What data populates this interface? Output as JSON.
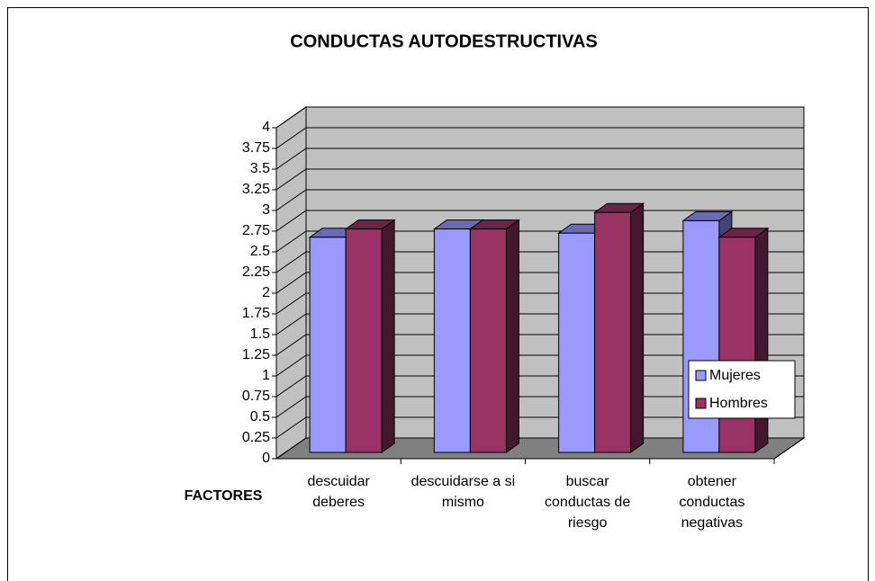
{
  "chart_data": {
    "type": "bar3d",
    "title": "CONDUCTAS AUTODESTRUCTIVAS",
    "x_label": "FACTORES",
    "categories": [
      "descuidar deberes",
      "descuidarse a si mismo",
      "buscar conductas de riesgo",
      "obtener conductas negativas"
    ],
    "series": [
      {
        "name": "Mujeres",
        "color": "#9999ff",
        "values": [
          2.6,
          2.7,
          2.65,
          2.8
        ]
      },
      {
        "name": "Hombres",
        "color": "#993366",
        "values": [
          2.7,
          2.7,
          2.9,
          2.6
        ]
      }
    ],
    "ylim": [
      0,
      4
    ],
    "yticks": [
      0,
      0.25,
      0.5,
      0.75,
      1,
      1.25,
      1.5,
      1.75,
      2,
      2.25,
      2.5,
      2.75,
      3,
      3.25,
      3.5,
      3.75,
      4
    ],
    "grid": true,
    "legend": "right"
  }
}
